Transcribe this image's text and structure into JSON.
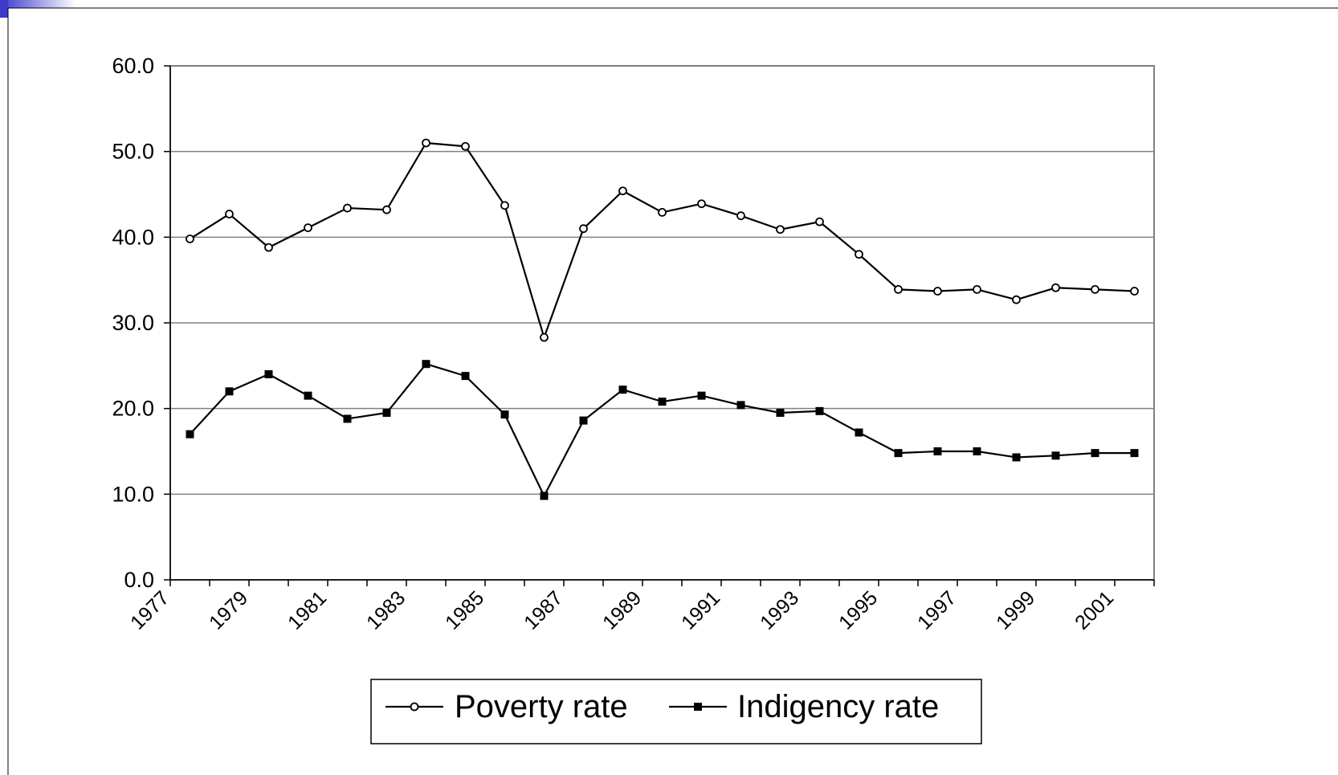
{
  "chart_data": {
    "type": "line",
    "title": "",
    "xlabel": "",
    "ylabel": "",
    "ylim": [
      0,
      60
    ],
    "yticks": [
      "0.0",
      "10.0",
      "20.0",
      "30.0",
      "40.0",
      "50.0",
      "60.0"
    ],
    "xticks": [
      "1977",
      "1979",
      "1981",
      "1983",
      "1985",
      "1987",
      "1989",
      "1991",
      "1993",
      "1995",
      "1997",
      "1999",
      "2001"
    ],
    "grid": true,
    "legend_position": "bottom",
    "series": [
      {
        "name": "Poverty rate",
        "marker": "open-circle",
        "color": "#000000",
        "x": [
          1977.5,
          1978.5,
          1979.5,
          1980.5,
          1981.5,
          1982.5,
          1983.5,
          1984.5,
          1985.5,
          1986.5,
          1987.5,
          1988.5,
          1989.5,
          1990.5,
          1991.5,
          1992.5,
          1993.5,
          1994.5,
          1995.5,
          1996.5,
          1997.5,
          1998.5,
          1999.5,
          2000.5,
          2001.5
        ],
        "values": [
          39.8,
          42.7,
          38.8,
          41.1,
          43.4,
          43.2,
          51.0,
          50.6,
          43.7,
          28.3,
          41.0,
          45.4,
          42.9,
          43.9,
          42.5,
          40.9,
          41.8,
          38.0,
          33.9,
          33.7,
          33.9,
          32.7,
          34.1,
          33.9,
          33.7
        ]
      },
      {
        "name": "Indigency rate",
        "marker": "filled-square",
        "color": "#000000",
        "x": [
          1977.5,
          1978.5,
          1979.5,
          1980.5,
          1981.5,
          1982.5,
          1983.5,
          1984.5,
          1985.5,
          1986.5,
          1987.5,
          1988.5,
          1989.5,
          1990.5,
          1991.5,
          1992.5,
          1993.5,
          1994.5,
          1995.5,
          1996.5,
          1997.5,
          1998.5,
          1999.5,
          2000.5,
          2001.5
        ],
        "values": [
          17.0,
          22.0,
          24.0,
          21.5,
          18.8,
          19.5,
          25.2,
          23.8,
          19.3,
          9.8,
          18.6,
          22.2,
          20.8,
          21.5,
          20.4,
          19.5,
          19.7,
          17.2,
          14.8,
          15.0,
          15.0,
          14.3,
          14.5,
          14.8,
          14.8
        ]
      }
    ]
  },
  "colors": {
    "accent_corner": "#3b3bc8",
    "grid": "#808080",
    "plot_border": "#808080"
  }
}
